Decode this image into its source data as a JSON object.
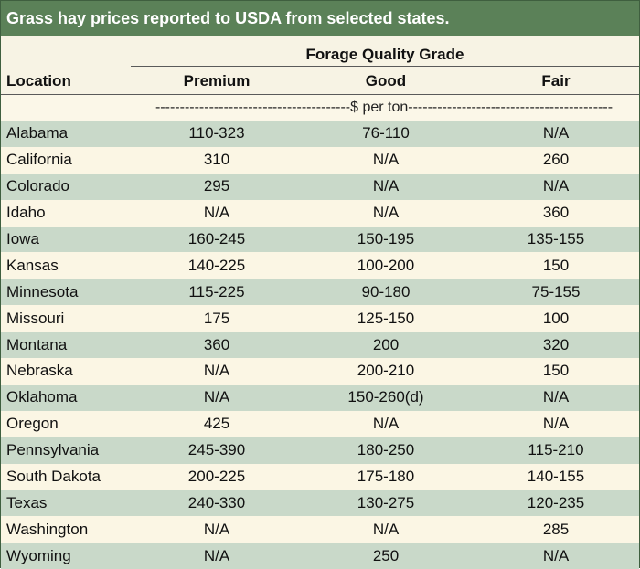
{
  "title": "Grass hay prices reported to USDA from selected states.",
  "group_header": "Forage Quality Grade",
  "columns": {
    "location": "Location",
    "premium": "Premium",
    "good": "Good",
    "fair": "Fair"
  },
  "unit_line": "----------------------------------------$ per ton------------------------------------------",
  "rows": [
    {
      "location": "Alabama",
      "premium": "110-323",
      "good": "76-110",
      "fair": "N/A"
    },
    {
      "location": "California",
      "premium": "310",
      "good": "N/A",
      "fair": "260"
    },
    {
      "location": "Colorado",
      "premium": "295",
      "good": "N/A",
      "fair": "N/A"
    },
    {
      "location": "Idaho",
      "premium": "N/A",
      "good": "N/A",
      "fair": "360"
    },
    {
      "location": "Iowa",
      "premium": "160-245",
      "good": "150-195",
      "fair": "135-155"
    },
    {
      "location": "Kansas",
      "premium": "140-225",
      "good": "100-200",
      "fair": "150"
    },
    {
      "location": "Minnesota",
      "premium": "115-225",
      "good": "90-180",
      "fair": "75-155"
    },
    {
      "location": "Missouri",
      "premium": "175",
      "good": "125-150",
      "fair": "100"
    },
    {
      "location": "Montana",
      "premium": "360",
      "good": "200",
      "fair": "320"
    },
    {
      "location": "Nebraska",
      "premium": "N/A",
      "good": "200-210",
      "fair": "150"
    },
    {
      "location": "Oklahoma",
      "premium": "N/A",
      "good": "150-260(d)",
      "fair": "N/A"
    },
    {
      "location": "Oregon",
      "premium": "425",
      "good": "N/A",
      "fair": "N/A"
    },
    {
      "location": "Pennsylvania",
      "premium": "245-390",
      "good": "180-250",
      "fair": "115-210"
    },
    {
      "location": "South Dakota",
      "premium": "200-225",
      "good": "175-180",
      "fair": "140-155"
    },
    {
      "location": "Texas",
      "premium": "240-330",
      "good": "130-275",
      "fair": "120-235"
    },
    {
      "location": "Washington",
      "premium": "N/A",
      "good": "N/A",
      "fair": "285"
    },
    {
      "location": "Wyoming",
      "premium": "N/A",
      "good": "250",
      "fair": "N/A"
    }
  ],
  "colors": {
    "title_bar": "#5b8158",
    "row_shade": "#c9d9c9",
    "row_light": "#fbf6e4"
  }
}
